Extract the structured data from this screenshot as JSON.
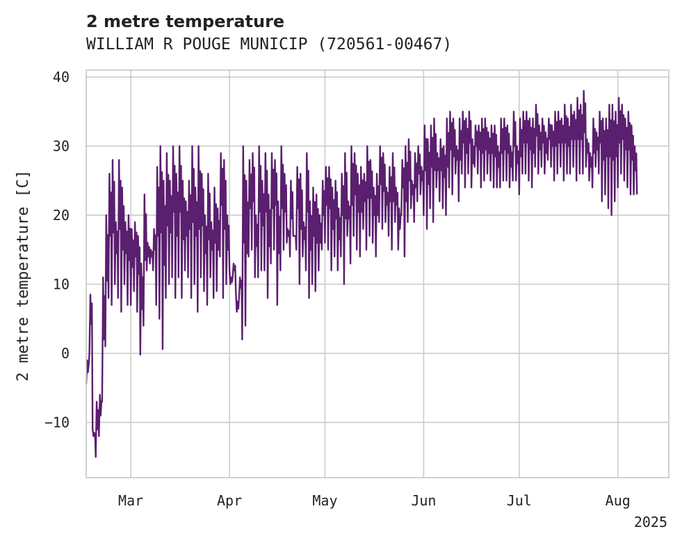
{
  "chart_data": {
    "type": "line",
    "title": "2 metre temperature",
    "subtitle": "WILLIAM R POUGE MUNICIP (720561-00467)",
    "xlabel": "",
    "ylabel": "2 metre temperature [C]",
    "ylim": [
      -18,
      41
    ],
    "yticks": [
      -10,
      0,
      10,
      20,
      30,
      40
    ],
    "xlim": [
      "2025-02-15",
      "2025-08-17"
    ],
    "xticks": [
      {
        "date": "2025-03-01",
        "label": "Mar"
      },
      {
        "date": "2025-04-01",
        "label": "Apr"
      },
      {
        "date": "2025-05-01",
        "label": "May"
      },
      {
        "date": "2025-06-01",
        "label": "Jun"
      },
      {
        "date": "2025-07-01",
        "label": "Jul"
      },
      {
        "date": "2025-08-01",
        "label": "Aug"
      }
    ],
    "year_label": "2025",
    "grid": true,
    "color": "#5a1f6e",
    "series": [
      {
        "x": [
          "2025-02-15",
          "2025-02-16",
          "2025-02-17",
          "2025-02-18",
          "2025-02-19",
          "2025-02-20",
          "2025-02-21",
          "2025-02-22",
          "2025-02-23",
          "2025-02-24",
          "2025-02-25",
          "2025-02-26",
          "2025-02-27",
          "2025-02-28",
          "2025-03-01",
          "2025-03-02",
          "2025-03-03",
          "2025-03-04",
          "2025-03-05",
          "2025-03-06",
          "2025-03-07",
          "2025-03-08",
          "2025-03-09",
          "2025-03-10",
          "2025-03-11",
          "2025-03-12",
          "2025-03-13",
          "2025-03-14",
          "2025-03-15",
          "2025-03-16",
          "2025-03-17",
          "2025-03-18",
          "2025-03-19",
          "2025-03-20",
          "2025-03-21",
          "2025-03-22",
          "2025-03-23",
          "2025-03-24",
          "2025-03-25",
          "2025-03-26",
          "2025-03-27",
          "2025-03-28",
          "2025-03-29",
          "2025-03-30",
          "2025-03-31",
          "2025-04-01",
          "2025-04-02",
          "2025-04-03",
          "2025-04-04",
          "2025-04-05",
          "2025-04-06",
          "2025-04-07",
          "2025-04-08",
          "2025-04-09",
          "2025-04-10",
          "2025-04-11",
          "2025-04-12",
          "2025-04-13",
          "2025-04-14",
          "2025-04-15",
          "2025-04-16",
          "2025-04-17",
          "2025-04-18",
          "2025-04-19",
          "2025-04-20",
          "2025-04-21",
          "2025-04-22",
          "2025-04-23",
          "2025-04-24",
          "2025-04-25",
          "2025-04-26",
          "2025-04-27",
          "2025-04-28",
          "2025-04-29",
          "2025-04-30",
          "2025-05-01",
          "2025-05-02",
          "2025-05-03",
          "2025-05-04",
          "2025-05-05",
          "2025-05-06",
          "2025-05-07",
          "2025-05-08",
          "2025-05-09",
          "2025-05-10",
          "2025-05-11",
          "2025-05-12",
          "2025-05-13",
          "2025-05-14",
          "2025-05-15",
          "2025-05-16",
          "2025-05-17",
          "2025-05-18",
          "2025-05-19",
          "2025-05-20",
          "2025-05-21",
          "2025-05-22",
          "2025-05-23",
          "2025-05-24",
          "2025-05-25",
          "2025-05-26",
          "2025-05-27",
          "2025-05-28",
          "2025-05-29",
          "2025-05-30",
          "2025-05-31",
          "2025-06-01",
          "2025-06-02",
          "2025-06-03",
          "2025-06-04",
          "2025-06-05",
          "2025-06-06",
          "2025-06-07",
          "2025-06-08",
          "2025-06-09",
          "2025-06-10",
          "2025-06-11",
          "2025-06-12",
          "2025-06-13",
          "2025-06-14",
          "2025-06-15",
          "2025-06-16",
          "2025-06-17",
          "2025-06-18",
          "2025-06-19",
          "2025-06-20",
          "2025-06-21",
          "2025-06-22",
          "2025-06-23",
          "2025-06-24",
          "2025-06-25",
          "2025-06-26",
          "2025-06-27",
          "2025-06-28",
          "2025-06-29",
          "2025-06-30",
          "2025-07-01",
          "2025-07-02",
          "2025-07-03",
          "2025-07-04",
          "2025-07-05",
          "2025-07-06",
          "2025-07-07",
          "2025-07-08",
          "2025-07-09",
          "2025-07-10",
          "2025-07-11",
          "2025-07-12",
          "2025-07-13",
          "2025-07-14",
          "2025-07-15",
          "2025-07-16",
          "2025-07-17",
          "2025-07-18",
          "2025-07-19",
          "2025-07-20",
          "2025-07-21",
          "2025-07-22",
          "2025-07-23",
          "2025-07-24",
          "2025-07-25",
          "2025-07-26",
          "2025-07-27",
          "2025-07-28",
          "2025-07-29",
          "2025-07-30",
          "2025-07-31",
          "2025-08-01",
          "2025-08-02",
          "2025-08-03",
          "2025-08-04",
          "2025-08-05",
          "2025-08-06",
          "2025-08-07",
          "2025-08-08",
          "2025-08-09",
          "2025-08-10",
          "2025-08-11",
          "2025-08-12",
          "2025-08-13",
          "2025-08-14",
          "2025-08-15"
        ],
        "min": [
          -4.5,
          0,
          -11,
          -15,
          -12,
          -7,
          1,
          8,
          7,
          10,
          8,
          6,
          10,
          7,
          7,
          9,
          6,
          -0.2,
          4,
          12,
          13,
          12,
          7,
          5,
          0.6,
          8,
          10,
          11,
          8,
          11,
          8,
          12,
          11,
          8,
          10,
          6,
          11,
          9,
          7,
          11,
          8,
          9,
          14,
          8,
          10,
          12,
          11,
          9,
          8,
          2,
          4,
          14,
          15,
          11,
          11,
          12,
          12,
          8,
          13,
          15,
          7,
          12,
          15,
          16,
          14,
          17,
          15,
          10,
          14,
          12,
          8,
          10,
          9,
          12,
          15,
          16,
          15,
          12,
          14,
          12,
          14,
          10,
          17,
          13,
          17,
          15,
          14,
          18,
          15,
          17,
          16,
          14,
          19,
          18,
          19,
          17,
          15,
          19,
          15,
          20,
          14,
          19,
          21,
          19,
          22,
          23,
          20,
          18,
          21,
          19,
          24,
          22,
          21,
          20,
          24,
          23,
          26,
          22,
          26,
          24,
          26,
          24,
          27,
          26,
          24,
          25,
          26,
          25,
          24,
          24,
          24,
          25,
          25,
          24,
          25,
          25,
          23,
          26,
          26,
          25,
          24,
          27,
          26,
          27,
          26,
          28,
          27,
          25,
          26,
          27,
          25,
          26,
          26,
          27,
          25,
          26,
          26,
          27,
          25,
          24,
          27,
          26,
          22,
          23,
          21,
          20,
          22,
          24,
          26,
          25,
          24,
          23,
          23,
          23,
          22
        ],
        "max": [
          -1,
          8.5,
          -12,
          -7,
          -6,
          11,
          20,
          26,
          28,
          19,
          28,
          24,
          19,
          20,
          18,
          19,
          17,
          13,
          23,
          16,
          15,
          18,
          27,
          30,
          25,
          29,
          25,
          30,
          26,
          30,
          25,
          22,
          25,
          30,
          24,
          30,
          26,
          20,
          26,
          19,
          24,
          21,
          29,
          28,
          20,
          10,
          13,
          6,
          11,
          30,
          25,
          28,
          29,
          20,
          30,
          25,
          29,
          23,
          29,
          28,
          22,
          30,
          26,
          18,
          25,
          17,
          27,
          26,
          19,
          29,
          22,
          24,
          23,
          20,
          25,
          27,
          27,
          24,
          25,
          21,
          26,
          29,
          22,
          30,
          29,
          26,
          27,
          26,
          30,
          28,
          24,
          26,
          30,
          29,
          24,
          27,
          29,
          24,
          21,
          28,
          30,
          31,
          25,
          29,
          30,
          27,
          33,
          31,
          33,
          34,
          29,
          31,
          30,
          34,
          35,
          34,
          30,
          34,
          35,
          34,
          35,
          31,
          33,
          33,
          34,
          34,
          32,
          33,
          33,
          30,
          34,
          34,
          33,
          30,
          35,
          30,
          34,
          35,
          35,
          34,
          34,
          36,
          33,
          34,
          32,
          34,
          33,
          35,
          35,
          34,
          36,
          34,
          36,
          35,
          37,
          36,
          38,
          31,
          29,
          34,
          32,
          35,
          34,
          34,
          36,
          36,
          35,
          37,
          36,
          34,
          35,
          33,
          30
        ]
      }
    ]
  }
}
